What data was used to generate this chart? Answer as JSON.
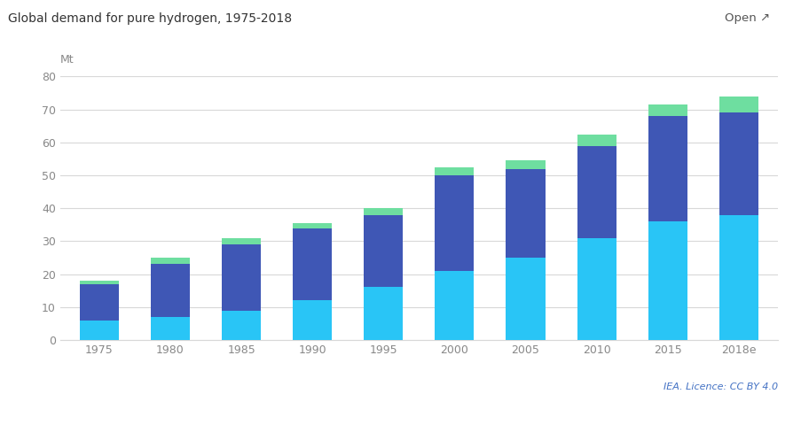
{
  "title": "Global demand for pure hydrogen, 1975-2018",
  "ylabel": "Mt",
  "categories": [
    "1975",
    "1980",
    "1985",
    "1990",
    "1995",
    "2000",
    "2005",
    "2010",
    "2015",
    "2018e"
  ],
  "refining": [
    6,
    7,
    9,
    12,
    16,
    21,
    25,
    31,
    36,
    38
  ],
  "ammonia": [
    11,
    16,
    20,
    22,
    22,
    29,
    27,
    28,
    32,
    31
  ],
  "other": [
    1,
    2,
    2,
    1.5,
    2,
    2.5,
    2.5,
    3.5,
    3.5,
    5
  ],
  "color_refining": "#29c5f6",
  "color_ammonia": "#3f57b5",
  "color_other": "#6edea0",
  "ylim": [
    0,
    80
  ],
  "yticks": [
    0,
    10,
    20,
    30,
    40,
    50,
    60,
    70,
    80
  ],
  "background_color": "#ffffff",
  "grid_color": "#d8d8d8",
  "title_fontsize": 10,
  "tick_fontsize": 9,
  "legend_fontsize": 9,
  "bar_width": 0.55,
  "licence_text": "IEA. Licence: CC BY 4.0",
  "open_text": "Open"
}
